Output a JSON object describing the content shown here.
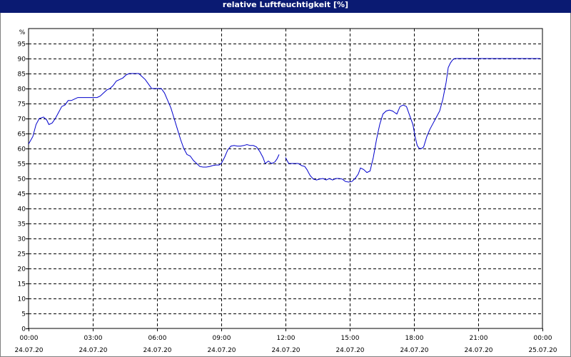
{
  "chart_data": {
    "type": "line",
    "title": "relative Luftfeuchtigkeit [%]",
    "ylabel": "%",
    "ylim": [
      0,
      95
    ],
    "yticks": [
      0,
      5,
      10,
      15,
      20,
      25,
      30,
      35,
      40,
      45,
      50,
      55,
      60,
      65,
      70,
      75,
      80,
      85,
      90,
      95
    ],
    "xlim_hours": [
      0,
      24
    ],
    "xticks": [
      {
        "h": 0,
        "time": "00:00",
        "date": "24.07.20"
      },
      {
        "h": 3,
        "time": "03:00",
        "date": "24.07.20"
      },
      {
        "h": 6,
        "time": "06:00",
        "date": "24.07.20"
      },
      {
        "h": 9,
        "time": "09:00",
        "date": "24.07.20"
      },
      {
        "h": 12,
        "time": "12:00",
        "date": "24.07.20"
      },
      {
        "h": 15,
        "time": "15:00",
        "date": "24.07.20"
      },
      {
        "h": 18,
        "time": "18:00",
        "date": "24.07.20"
      },
      {
        "h": 21,
        "time": "21:00",
        "date": "24.07.20"
      },
      {
        "h": 24,
        "time": "00:00",
        "date": "25.07.20"
      }
    ],
    "grid": true,
    "line_color": "#0000cc",
    "series": [
      {
        "segments": [
          [
            [
              0.0,
              61.5
            ],
            [
              0.2,
              64
            ],
            [
              0.35,
              68
            ],
            [
              0.5,
              70
            ],
            [
              0.7,
              70.5
            ],
            [
              0.85,
              69.5
            ],
            [
              0.95,
              68
            ],
            [
              1.1,
              68.5
            ],
            [
              1.25,
              70
            ],
            [
              1.4,
              72
            ],
            [
              1.55,
              74
            ],
            [
              1.7,
              74.5
            ],
            [
              1.85,
              76
            ],
            [
              2.0,
              76
            ],
            [
              2.15,
              76.5
            ],
            [
              2.3,
              77
            ],
            [
              2.6,
              77
            ],
            [
              2.9,
              77
            ],
            [
              3.2,
              77
            ],
            [
              3.35,
              77.5
            ],
            [
              3.5,
              78.5
            ],
            [
              3.65,
              79.5
            ],
            [
              3.8,
              80
            ],
            [
              3.95,
              81
            ],
            [
              4.1,
              82.5
            ],
            [
              4.25,
              83
            ],
            [
              4.4,
              83.5
            ],
            [
              4.55,
              84.5
            ],
            [
              4.7,
              85
            ],
            [
              4.85,
              85
            ],
            [
              5.0,
              85
            ],
            [
              5.15,
              85
            ],
            [
              5.3,
              84
            ],
            [
              5.45,
              83
            ],
            [
              5.6,
              81.5
            ],
            [
              5.75,
              80
            ],
            [
              5.9,
              80
            ],
            [
              6.05,
              80
            ],
            [
              6.2,
              80
            ],
            [
              6.35,
              78.5
            ],
            [
              6.5,
              76
            ],
            [
              6.65,
              73.5
            ],
            [
              6.8,
              70
            ],
            [
              6.95,
              66.5
            ],
            [
              7.1,
              63
            ],
            [
              7.25,
              60
            ],
            [
              7.4,
              58
            ],
            [
              7.55,
              57.5
            ],
            [
              7.7,
              56
            ],
            [
              7.85,
              55
            ],
            [
              8.0,
              54
            ],
            [
              8.15,
              53.8
            ],
            [
              8.3,
              53.8
            ],
            [
              8.45,
              54
            ],
            [
              8.6,
              54.3
            ],
            [
              8.75,
              54.5
            ],
            [
              8.9,
              54.5
            ],
            [
              9.0,
              55
            ],
            [
              9.15,
              57
            ],
            [
              9.3,
              59.5
            ],
            [
              9.45,
              60.8
            ],
            [
              9.6,
              61
            ],
            [
              9.75,
              60.8
            ],
            [
              9.9,
              60.8
            ],
            [
              10.05,
              61
            ],
            [
              10.2,
              61.3
            ],
            [
              10.35,
              61
            ],
            [
              10.5,
              61
            ],
            [
              10.65,
              60.5
            ],
            [
              10.8,
              59
            ],
            [
              10.95,
              57
            ],
            [
              11.05,
              55
            ],
            [
              11.2,
              55.8
            ],
            [
              11.35,
              55
            ],
            [
              11.5,
              55.5
            ],
            [
              11.6,
              56.5
            ],
            [
              11.7,
              58
            ]
          ],
          [
            [
              12.0,
              57
            ],
            [
              12.15,
              55
            ],
            [
              12.3,
              55
            ],
            [
              12.45,
              55
            ],
            [
              12.6,
              55
            ],
            [
              12.75,
              54.3
            ],
            [
              12.9,
              54
            ],
            [
              13.0,
              53
            ],
            [
              13.15,
              51
            ],
            [
              13.3,
              49.8
            ],
            [
              13.45,
              49.5
            ],
            [
              13.6,
              49.8
            ],
            [
              13.75,
              50
            ],
            [
              13.9,
              49.5
            ],
            [
              14.05,
              50
            ],
            [
              14.2,
              49.5
            ],
            [
              14.35,
              50
            ],
            [
              14.5,
              50
            ],
            [
              14.65,
              49.8
            ],
            [
              14.8,
              49
            ],
            [
              14.95,
              48.8
            ],
            [
              15.1,
              49
            ],
            [
              15.25,
              50
            ],
            [
              15.4,
              51.5
            ],
            [
              15.5,
              53.5
            ],
            [
              15.65,
              53
            ],
            [
              15.8,
              52
            ],
            [
              15.95,
              52.5
            ],
            [
              16.1,
              57
            ],
            [
              16.25,
              63
            ],
            [
              16.4,
              68
            ],
            [
              16.55,
              71.5
            ],
            [
              16.7,
              72.5
            ],
            [
              16.85,
              72.8
            ],
            [
              17.0,
              72.5
            ],
            [
              17.1,
              72
            ],
            [
              17.2,
              71.5
            ],
            [
              17.35,
              74
            ],
            [
              17.5,
              74.5
            ],
            [
              17.65,
              74
            ],
            [
              17.8,
              71
            ],
            [
              17.95,
              68
            ],
            [
              18.05,
              64
            ],
            [
              18.15,
              61
            ],
            [
              18.25,
              60
            ],
            [
              18.35,
              60
            ],
            [
              18.45,
              60.5
            ],
            [
              18.6,
              64
            ],
            [
              18.75,
              66.5
            ],
            [
              18.9,
              68.5
            ],
            [
              19.05,
              70.5
            ],
            [
              19.2,
              72.5
            ],
            [
              19.35,
              76.5
            ],
            [
              19.5,
              82
            ],
            [
              19.6,
              87
            ],
            [
              19.7,
              88.5
            ],
            [
              19.8,
              89.5
            ],
            [
              19.9,
              90
            ],
            [
              20.2,
              90
            ],
            [
              21.0,
              90
            ],
            [
              22.0,
              90
            ],
            [
              23.0,
              90
            ],
            [
              23.9,
              90
            ]
          ]
        ]
      }
    ]
  }
}
